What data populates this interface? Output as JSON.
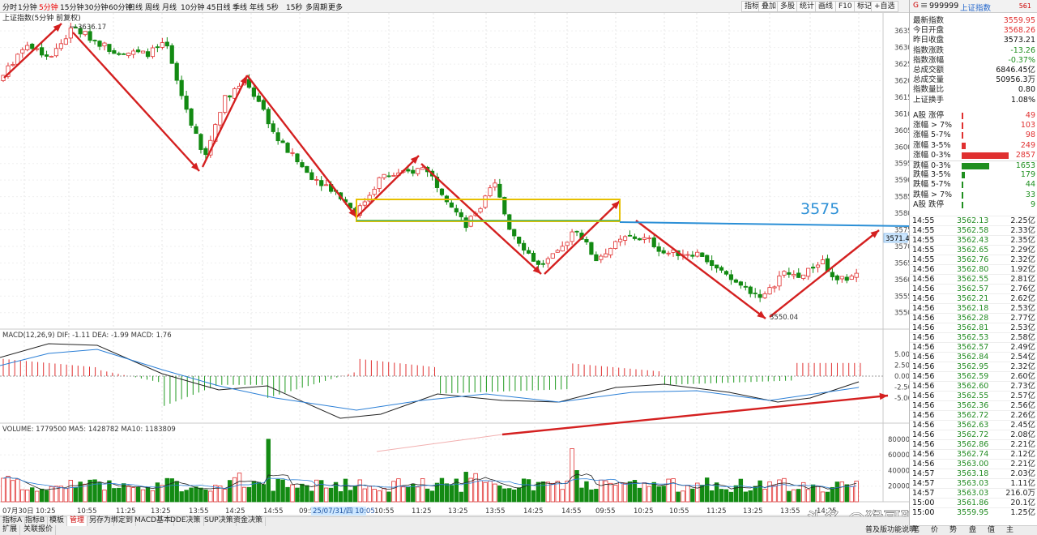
{
  "periods": [
    "分时",
    "1分钟",
    "5分钟",
    "15分钟",
    "30分钟",
    "60分钟",
    "日线",
    "周线",
    "月线",
    "10分钟",
    "45日线",
    "季线",
    "年线",
    "5秒",
    "15秒",
    "多周期",
    "更多"
  ],
  "active_period": "5分钟",
  "toolbar": [
    "指标",
    "叠加",
    "多股",
    "统计",
    "画线",
    "F10",
    "标记",
    "+自选"
  ],
  "chart_title": "上证指数(5分钟 前复权)",
  "price_axis": [
    "3635",
    "3630",
    "3625",
    "3620",
    "3615",
    "3610",
    "3605",
    "3600",
    "3595",
    "3590",
    "3585",
    "3580",
    "3575",
    "3570",
    "3565",
    "3560",
    "3555",
    "3550"
  ],
  "annot_high": "3636.17",
  "annot_low": "3550.04",
  "current_price_tag": "3571.4",
  "level_label": "3575",
  "macd_header": "MACD(12,26,9)  DIF: -1.11  DEA: -1.99  MACD: 1.76",
  "macd_axis": [
    "5.00",
    "2.50",
    "0.00",
    "-2.50",
    "-5.00"
  ],
  "vol_header": "VOLUME: 1779500  MA5: 1428782  MA10: 1183809",
  "vol_axis": [
    "80000",
    "60000",
    "40000",
    "20000"
  ],
  "time_axis": [
    "07月30日",
    "10:25",
    "10:55",
    "11:25",
    "13:25",
    "13:55",
    "14:25",
    "14:55",
    "09:55",
    "25/07/31/四 10:05",
    "10:55",
    "11:25",
    "13:25",
    "13:55",
    "14:25",
    "14:55",
    "09:55",
    "10:25",
    "10:55",
    "11:25",
    "13:25",
    "13:55",
    "14:25"
  ],
  "quote": {
    "code": "999999",
    "name": "上证指数",
    "badge": "G",
    "extra": "561",
    "rows": [
      {
        "label": "最新指数",
        "value": "3559.95"
      },
      {
        "label": "今日开盘",
        "value": "3568.26"
      },
      {
        "label": "昨日收盘",
        "value": "3573.21"
      },
      {
        "label": "指数涨跌",
        "value": "-13.26"
      },
      {
        "label": "指数涨幅",
        "value": "-0.37%"
      },
      {
        "label": "总成交额",
        "value": "6846.45亿"
      },
      {
        "label": "总成交量",
        "value": "50956.3万"
      },
      {
        "label": "指数量比",
        "value": "0.80"
      },
      {
        "label": "上证换手",
        "value": "1.08%"
      }
    ]
  },
  "breadth": [
    {
      "label": "A股 涨停",
      "value": "49",
      "color": "#e03030"
    },
    {
      "label": "涨幅 > 7%",
      "value": "103",
      "color": "#e03030"
    },
    {
      "label": "涨幅 5-7%",
      "value": "98",
      "color": "#e03030"
    },
    {
      "label": "涨幅 3-5%",
      "value": "249",
      "color": "#e03030"
    },
    {
      "label": "涨幅 0-3%",
      "value": "2857",
      "color": "#e03030"
    },
    {
      "label": "跌幅 0-3%",
      "value": "1653",
      "color": "#1f8f1f"
    },
    {
      "label": "跌幅 3-5%",
      "value": "179",
      "color": "#1f8f1f"
    },
    {
      "label": "跌幅 5-7%",
      "value": "44",
      "color": "#1f8f1f"
    },
    {
      "label": "跌幅 > 7%",
      "value": "33",
      "color": "#1f8f1f"
    },
    {
      "label": "A股 跌停",
      "value": "9",
      "color": "#1f8f1f"
    }
  ],
  "ticks": [
    {
      "t": "14:55",
      "p": "3562.13",
      "a": "2.25亿"
    },
    {
      "t": "14:55",
      "p": "3562.58",
      "a": "2.33亿"
    },
    {
      "t": "14:55",
      "p": "3562.43",
      "a": "2.35亿"
    },
    {
      "t": "14:55",
      "p": "3562.65",
      "a": "2.29亿"
    },
    {
      "t": "14:55",
      "p": "3562.76",
      "a": "2.32亿"
    },
    {
      "t": "14:56",
      "p": "3562.80",
      "a": "1.92亿"
    },
    {
      "t": "14:56",
      "p": "3562.55",
      "a": "2.81亿"
    },
    {
      "t": "14:56",
      "p": "3562.57",
      "a": "2.76亿"
    },
    {
      "t": "14:56",
      "p": "3562.21",
      "a": "2.62亿"
    },
    {
      "t": "14:56",
      "p": "3562.18",
      "a": "2.53亿"
    },
    {
      "t": "14:56",
      "p": "3562.28",
      "a": "2.77亿"
    },
    {
      "t": "14:56",
      "p": "3562.81",
      "a": "2.53亿"
    },
    {
      "t": "14:56",
      "p": "3562.53",
      "a": "2.58亿"
    },
    {
      "t": "14:56",
      "p": "3562.57",
      "a": "2.49亿"
    },
    {
      "t": "14:56",
      "p": "3562.84",
      "a": "2.54亿"
    },
    {
      "t": "14:56",
      "p": "3562.95",
      "a": "2.32亿"
    },
    {
      "t": "14:56",
      "p": "3562.59",
      "a": "2.60亿"
    },
    {
      "t": "14:56",
      "p": "3562.60",
      "a": "2.73亿"
    },
    {
      "t": "14:56",
      "p": "3562.55",
      "a": "2.57亿"
    },
    {
      "t": "14:56",
      "p": "3562.36",
      "a": "2.56亿"
    },
    {
      "t": "14:56",
      "p": "3562.72",
      "a": "2.26亿"
    },
    {
      "t": "14:56",
      "p": "3562.63",
      "a": "2.45亿"
    },
    {
      "t": "14:56",
      "p": "3562.72",
      "a": "2.08亿"
    },
    {
      "t": "14:56",
      "p": "3562.86",
      "a": "2.21亿"
    },
    {
      "t": "14:56",
      "p": "3562.74",
      "a": "2.12亿"
    },
    {
      "t": "14:56",
      "p": "3563.00",
      "a": "2.21亿"
    },
    {
      "t": "14:57",
      "p": "3563.18",
      "a": "2.03亿"
    },
    {
      "t": "14:57",
      "p": "3563.03",
      "a": "1.11亿"
    },
    {
      "t": "14:57",
      "p": "3563.03",
      "a": "216.0万"
    },
    {
      "t": "15:00",
      "p": "3561.86",
      "a": "20.1亿"
    },
    {
      "t": "15:00",
      "p": "3559.95",
      "a": "1.25亿"
    }
  ],
  "bottom_tabs": [
    "指标A",
    "指标B",
    "模板",
    "管理",
    "另存为",
    "绑定到",
    "MACD基本",
    "DDE决策",
    "SUP决策",
    "资金决策"
  ],
  "active_tab": "管理",
  "bottom_tabs2": [
    "扩展",
    "关联报价"
  ],
  "right_bottom": [
    "普及版功能说明",
    "笔",
    "价",
    "势",
    "盘",
    "值",
    "主"
  ],
  "watermark": "头条 @猴哥聊缠论"
}
